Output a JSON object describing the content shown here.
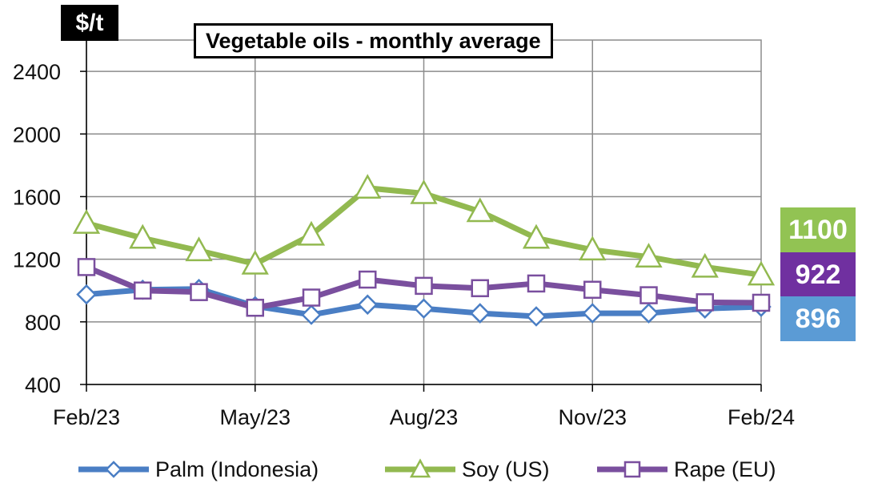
{
  "chart_data": {
    "type": "line",
    "title": "Vegetable oils - monthly average",
    "ylabel": "$/t",
    "xlabel": "",
    "ylim": [
      400,
      2600
    ],
    "yticks": [
      400,
      800,
      1200,
      1600,
      2000,
      2400
    ],
    "x": [
      "Feb/23",
      "Mar/23",
      "Apr/23",
      "May/23",
      "Jun/23",
      "Jul/23",
      "Aug/23",
      "Sep/23",
      "Oct/23",
      "Nov/23",
      "Dec/23",
      "Jan/24",
      "Feb/24"
    ],
    "xtick_labels": [
      "Feb/23",
      "May/23",
      "Aug/23",
      "Nov/23",
      "Feb/24"
    ],
    "grid": true,
    "legend_position": "bottom",
    "series": [
      {
        "name": "Palm (Indonesia)",
        "color": "#4a7ec4",
        "marker": "diamond",
        "values": [
          975,
          1005,
          1010,
          900,
          845,
          910,
          885,
          855,
          835,
          855,
          855,
          885,
          896
        ]
      },
      {
        "name": "Soy (US)",
        "color": "#92b950",
        "marker": "triangle",
        "values": [
          1430,
          1335,
          1255,
          1170,
          1355,
          1655,
          1620,
          1505,
          1335,
          1260,
          1215,
          1150,
          1100
        ]
      },
      {
        "name": "Rape (EU)",
        "color": "#7a4f9e",
        "marker": "square",
        "values": [
          1150,
          1000,
          990,
          890,
          955,
          1070,
          1030,
          1015,
          1045,
          1005,
          970,
          925,
          922
        ]
      }
    ],
    "end_labels": [
      {
        "series": "Soy (US)",
        "text": "1100",
        "color": "#92c353"
      },
      {
        "series": "Rape (EU)",
        "text": "922",
        "color": "#7030a0"
      },
      {
        "series": "Palm (Indonesia)",
        "text": "896",
        "color": "#5b9bd5"
      }
    ]
  }
}
